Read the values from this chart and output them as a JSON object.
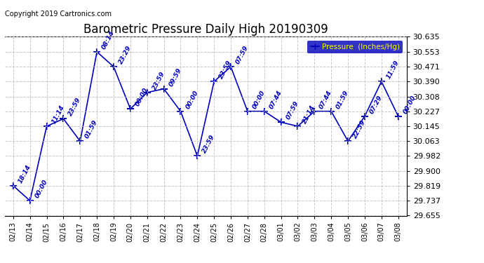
{
  "title": "Barometric Pressure Daily High 20190309",
  "copyright": "Copyright 2019 Cartronics.com",
  "legend_label": "Pressure  (Inches/Hg)",
  "x_labels": [
    "02/13",
    "02/14",
    "02/15",
    "02/16",
    "02/17",
    "02/18",
    "02/19",
    "02/20",
    "02/21",
    "02/22",
    "02/23",
    "02/24",
    "02/25",
    "02/26",
    "02/27",
    "02/28",
    "03/01",
    "03/02",
    "03/03",
    "03/04",
    "03/05",
    "03/06",
    "03/07",
    "03/08"
  ],
  "y_values": [
    29.819,
    29.737,
    30.145,
    30.186,
    30.063,
    30.553,
    30.471,
    30.24,
    30.33,
    30.35,
    30.227,
    29.982,
    30.39,
    30.471,
    30.227,
    30.227,
    30.167,
    30.145,
    30.227,
    30.227,
    30.063,
    30.2,
    30.39,
    30.2
  ],
  "time_labels": [
    "18:14",
    "00:00",
    "11:14",
    "23:59",
    "01:59",
    "08:14",
    "23:29",
    "00:00",
    "23:59",
    "09:59",
    "00:00",
    "23:59",
    "23:59",
    "07:59",
    "00:00",
    "07:44",
    "07:59",
    "21:14",
    "07:44",
    "01:59",
    "22:59",
    "07:29",
    "11:59",
    "00:00"
  ],
  "y_ticks": [
    29.655,
    29.737,
    29.819,
    29.9,
    29.982,
    30.063,
    30.145,
    30.227,
    30.308,
    30.39,
    30.471,
    30.553,
    30.635
  ],
  "y_min": 29.655,
  "y_max": 30.635,
  "line_color": "#0000BB",
  "marker_color": "#0000BB",
  "bg_color": "#FFFFFF",
  "grid_color": "#BBBBBB",
  "title_color": "#000000",
  "label_color": "#0000BB",
  "legend_bg": "#0000BB",
  "legend_fg": "#FFFF00"
}
